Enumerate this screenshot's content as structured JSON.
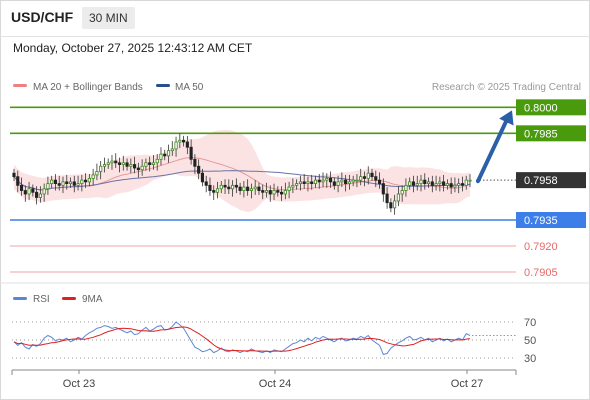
{
  "header": {
    "symbol": "USD/CHF",
    "timeframe": "30 MIN",
    "datetime": "Monday, October 27, 2025 12:43:12 AM CET"
  },
  "legend": {
    "ma20_bb": "MA 20 + Bollinger Bands",
    "ma50": "MA 50",
    "credit": "Research © 2025 Trading Central"
  },
  "rsi_legend": {
    "rsi": "RSI",
    "ma9": "9MA"
  },
  "colors": {
    "green": "#4a9a0e",
    "blue": "#3d7ee8",
    "red": "#e76a6a",
    "dark": "#333333",
    "arrow": "#2b5fa8",
    "band": "#fbd9d9",
    "ma20": "#e79a9a",
    "ma50": "#6a72a8",
    "rsi": "#5b86d6",
    "rsi_ma": "#e02020"
  },
  "chart_data": [
    {
      "type": "candlestick",
      "title": "USD/CHF",
      "timeframe": "30 MIN",
      "x_ticks": [
        "Oct 23",
        "Oct 24",
        "Oct 27"
      ],
      "ylim": [
        0.7895,
        0.801
      ],
      "last_price": {
        "value": 0.7958,
        "label": "0.7958"
      },
      "levels": [
        {
          "value": 0.8,
          "label": "0.8000",
          "kind": "target",
          "color": "green",
          "filled": true
        },
        {
          "value": 0.7985,
          "label": "0.7985",
          "kind": "resistance",
          "color": "green",
          "filled": true
        },
        {
          "value": 0.7935,
          "label": "0.7935",
          "kind": "pivot",
          "color": "blue",
          "filled": true
        },
        {
          "value": 0.792,
          "label": "0.7920",
          "kind": "support",
          "color": "red",
          "filled": false
        },
        {
          "value": 0.7905,
          "label": "0.7905",
          "kind": "support",
          "color": "red",
          "filled": false
        }
      ],
      "forecast_arrow": {
        "from": 0.7958,
        "to": 0.8
      },
      "indicators": [
        "MA 20 + Bollinger Bands",
        "MA 50"
      ],
      "price_path": [
        0.796,
        0.7955,
        0.7952,
        0.795,
        0.7953,
        0.7951,
        0.7948,
        0.795,
        0.7953,
        0.7956,
        0.7958,
        0.7956,
        0.7955,
        0.7957,
        0.7956,
        0.7957,
        0.7955,
        0.7956,
        0.7958,
        0.7957,
        0.7959,
        0.7961,
        0.7963,
        0.7966,
        0.7967,
        0.7968,
        0.7969,
        0.7968,
        0.7967,
        0.7968,
        0.7966,
        0.7967,
        0.7965,
        0.7964,
        0.7966,
        0.7968,
        0.7967,
        0.7968,
        0.797,
        0.7973,
        0.7972,
        0.7975,
        0.7976,
        0.798,
        0.7981,
        0.798,
        0.7977,
        0.797,
        0.7966,
        0.7962,
        0.7957,
        0.7955,
        0.7952,
        0.7951,
        0.7953,
        0.7955,
        0.7954,
        0.7953,
        0.7955,
        0.7954,
        0.7952,
        0.7954,
        0.7952,
        0.7953,
        0.7954,
        0.7952,
        0.7951,
        0.7952,
        0.795,
        0.7952,
        0.7951,
        0.795,
        0.7952,
        0.7954,
        0.7955,
        0.7956,
        0.7957,
        0.7956,
        0.7957,
        0.7956,
        0.7958,
        0.7957,
        0.7958,
        0.7959,
        0.7957,
        0.7955,
        0.7957,
        0.7958,
        0.7956,
        0.7957,
        0.7958,
        0.7958,
        0.796,
        0.7959,
        0.7962,
        0.796,
        0.7958,
        0.7956,
        0.795,
        0.7945,
        0.7942,
        0.7946,
        0.795,
        0.7952,
        0.7955,
        0.7957,
        0.7955,
        0.7956,
        0.7958,
        0.7956,
        0.7957,
        0.7955,
        0.7956,
        0.7957,
        0.7955,
        0.7956,
        0.7954,
        0.7955,
        0.7956,
        0.7955,
        0.7958,
        0.7958
      ]
    },
    {
      "type": "line",
      "title": "RSI",
      "series": [
        {
          "name": "RSI"
        },
        {
          "name": "9MA"
        }
      ],
      "y_ticks": [
        70,
        50,
        30
      ],
      "ylim": [
        20,
        80
      ],
      "rsi": [
        48,
        44,
        47,
        42,
        40,
        45,
        43,
        46,
        52,
        55,
        53,
        49,
        51,
        50,
        52,
        48,
        50,
        53,
        51,
        55,
        58,
        60,
        63,
        64,
        66,
        65,
        63,
        64,
        62,
        60,
        58,
        60,
        56,
        57,
        61,
        64,
        60,
        62,
        65,
        66,
        61,
        62,
        65,
        70,
        67,
        63,
        56,
        49,
        42,
        40,
        37,
        38,
        40,
        36,
        38,
        41,
        38,
        37,
        39,
        38,
        36,
        38,
        37,
        40,
        38,
        37,
        36,
        38,
        36,
        39,
        38,
        37,
        40,
        43,
        46,
        47,
        50,
        48,
        52,
        49,
        53,
        51,
        54,
        52,
        50,
        48,
        51,
        52,
        49,
        50,
        52,
        51,
        54,
        52,
        55,
        50,
        47,
        44,
        34,
        35,
        41,
        44,
        47,
        49,
        52,
        54,
        50,
        51,
        53,
        50,
        52,
        48,
        50,
        52,
        49,
        51,
        48,
        50,
        52,
        50,
        57,
        55
      ]
    }
  ]
}
